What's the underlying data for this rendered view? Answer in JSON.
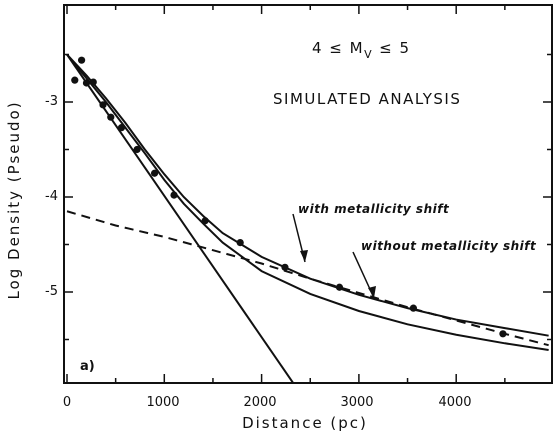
{
  "chart_data": {
    "type": "scatter",
    "xlabel": "Distance (pc)",
    "ylabel": "Log Density (Pseudo)",
    "xlim": [
      0,
      5000
    ],
    "ylim": [
      -5.9,
      -2.2
    ],
    "x_ticks": [
      "0",
      "1000",
      "2000",
      "3000",
      "4000"
    ],
    "y_ticks": [
      "-3",
      "-4",
      "-5"
    ],
    "panel_label": "a)",
    "annotations": {
      "magnitude_range": "4 ≤ M",
      "magnitude_sub": "V",
      "magnitude_rest": "≤ 5",
      "analysis": "SIMULATED ANALYSIS",
      "with_shift": "with metallicity shift",
      "without_shift": "without metallicity shift"
    },
    "points": {
      "x": [
        80,
        150,
        200,
        270,
        370,
        450,
        560,
        720,
        900,
        1100,
        1420,
        1780,
        2240,
        2800,
        3560,
        4480
      ],
      "y": [
        -2.77,
        -2.56,
        -2.8,
        -2.79,
        -3.03,
        -3.16,
        -3.27,
        -3.5,
        -3.75,
        -3.98,
        -4.25,
        -4.48,
        -4.74,
        -4.95,
        -5.17,
        -5.44
      ]
    },
    "lines": [
      {
        "style": "solid",
        "x": [
          0,
          200,
          400,
          600,
          800,
          1000,
          1200,
          1400,
          1600,
          2000,
          2500,
          3000,
          3500,
          4000,
          4500,
          4950
        ],
        "y": [
          -2.5,
          -2.72,
          -2.96,
          -3.22,
          -3.5,
          -3.76,
          -4.0,
          -4.2,
          -4.38,
          -4.63,
          -4.86,
          -5.03,
          -5.17,
          -5.29,
          -5.38,
          -5.46
        ]
      },
      {
        "style": "solid",
        "x": [
          0,
          200,
          400,
          600,
          800,
          1000,
          1200,
          1400,
          1600,
          2000,
          2500,
          3000,
          3500,
          4000,
          4500,
          4950
        ],
        "y": [
          -2.5,
          -2.75,
          -3.0,
          -3.27,
          -3.54,
          -3.82,
          -4.07,
          -4.28,
          -4.48,
          -4.78,
          -5.02,
          -5.2,
          -5.34,
          -5.45,
          -5.54,
          -5.61
        ]
      },
      {
        "style": "solid",
        "x": [
          0,
          2420
        ],
        "y": [
          -2.5,
          -6.1
        ]
      },
      {
        "style": "dashed",
        "x": [
          0,
          500,
          1000,
          1500,
          2000,
          2500,
          3000,
          3500,
          4000,
          4500,
          4950
        ],
        "y": [
          -4.15,
          -4.3,
          -4.42,
          -4.56,
          -4.7,
          -4.86,
          -5.01,
          -5.16,
          -5.3,
          -5.44,
          -5.56
        ]
      }
    ]
  }
}
